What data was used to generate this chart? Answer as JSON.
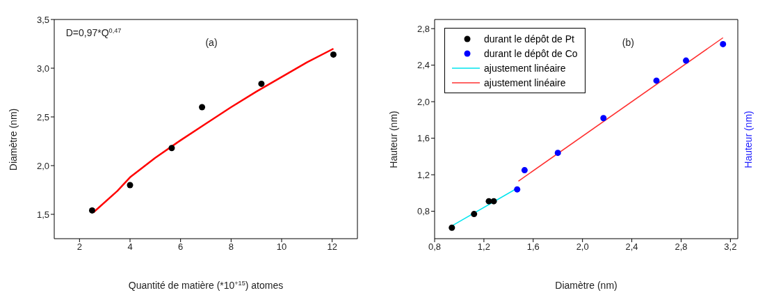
{
  "chart_data": [
    {
      "type": "scatter",
      "xlabel": "Quantité de matière (*10$^{+15}$) atomes",
      "ylabel": "Diamètre (nm)",
      "annotations": [
        "D=0,97*Q$^{0,47}$",
        "(a)"
      ],
      "xlim": [
        1,
        13
      ],
      "xticks": [
        2,
        4,
        6,
        8,
        10,
        12
      ],
      "ylim": [
        1.25,
        3.5
      ],
      "yticks": [
        {
          "value": 1.5,
          "label": "1,5"
        },
        {
          "value": 2.0,
          "label": "2,0"
        },
        {
          "value": 2.5,
          "label": "2,5"
        },
        {
          "value": 3.0,
          "label": "3,0"
        },
        {
          "value": 3.5,
          "label": "3,5"
        }
      ],
      "grid": false,
      "legend": false,
      "series": [
        {
          "marker": "circle",
          "color": "#000000",
          "x": [
            2.5,
            4.0,
            5.65,
            6.85,
            9.2,
            12.05
          ],
          "values": [
            1.54,
            1.8,
            2.18,
            2.6,
            2.84,
            3.14
          ]
        },
        {
          "type": "line",
          "marker": "none",
          "color": "#ff0000",
          "x": [
            2.55,
            3.5,
            4,
            5,
            6,
            7,
            8,
            9,
            10,
            11,
            12.05
          ],
          "values": [
            1.52,
            1.74,
            1.88,
            2.08,
            2.26,
            2.43,
            2.6,
            2.76,
            2.91,
            3.06,
            3.2
          ]
        }
      ]
    },
    {
      "type": "scatter",
      "xlabel": "Diamètre (nm)",
      "ylabel": "Hauteur (nm)",
      "y2label": "Hauteur (nm)",
      "annotations": [
        "(b)"
      ],
      "xlim": [
        0.8,
        3.26
      ],
      "xticks": [
        {
          "value": 0.8,
          "label": "0,8"
        },
        {
          "value": 1.2,
          "label": "1,2"
        },
        {
          "value": 1.6,
          "label": "1,6"
        },
        {
          "value": 2.0,
          "label": "2,0"
        },
        {
          "value": 2.4,
          "label": "2,4"
        },
        {
          "value": 2.8,
          "label": "2,8"
        },
        {
          "value": 3.2,
          "label": "3,2"
        }
      ],
      "ylim": [
        0.5,
        2.9
      ],
      "yticks": [
        {
          "value": 0.8,
          "label": "0,8"
        },
        {
          "value": 1.2,
          "label": "1,2"
        },
        {
          "value": 1.6,
          "label": "1,6"
        },
        {
          "value": 2.0,
          "label": "2,0"
        },
        {
          "value": 2.4,
          "label": "2,4"
        },
        {
          "value": 2.8,
          "label": "2,8"
        }
      ],
      "grid": false,
      "legend": "top left",
      "series": [
        {
          "name": "durant le dépôt de Pt",
          "marker": "circle",
          "color": "#000000",
          "x": [
            0.94,
            1.12,
            1.24,
            1.28
          ],
          "values": [
            0.62,
            0.77,
            0.91,
            0.91
          ]
        },
        {
          "name": "durant le dépôt de Co",
          "marker": "circle",
          "color": "#0000ff",
          "x": [
            1.47,
            1.53,
            1.8,
            2.17,
            2.6,
            2.84,
            3.14
          ],
          "values": [
            1.04,
            1.25,
            1.44,
            1.82,
            2.23,
            2.45,
            2.63
          ]
        },
        {
          "type": "line",
          "marker": "none",
          "name": "ajustement linéaire",
          "color": "#00e5ee",
          "x": [
            0.94,
            1.48
          ],
          "values": [
            0.64,
            1.06
          ]
        },
        {
          "type": "line",
          "marker": "none",
          "name": "ajustement linéaire",
          "color": "#ff3030",
          "x": [
            1.48,
            3.14
          ],
          "values": [
            1.13,
            2.7
          ]
        }
      ]
    }
  ]
}
